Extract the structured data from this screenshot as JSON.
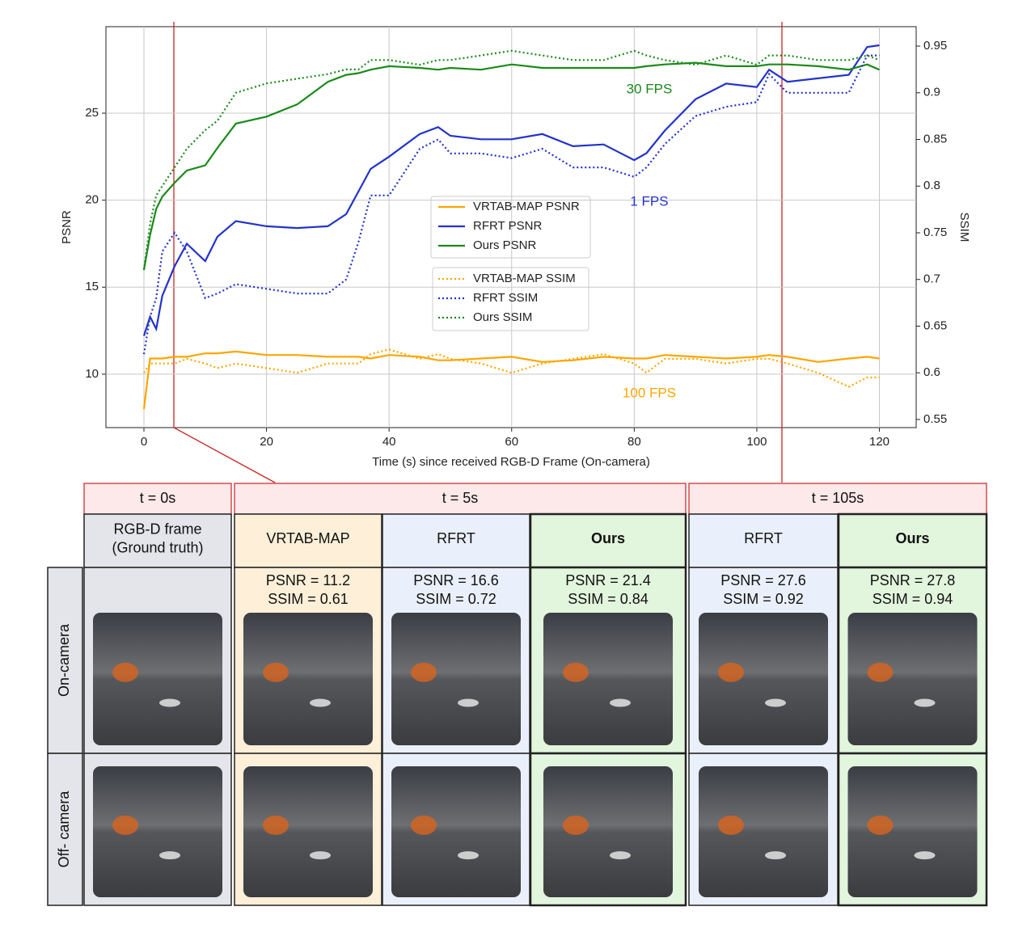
{
  "chart_data": {
    "type": "line",
    "x": [
      0,
      1,
      2,
      3,
      5,
      7,
      10,
      12,
      15,
      20,
      25,
      30,
      33,
      35,
      37,
      40,
      45,
      48,
      50,
      55,
      60,
      65,
      70,
      75,
      80,
      82,
      85,
      90,
      95,
      100,
      102,
      105,
      110,
      115,
      118,
      120
    ],
    "series": [
      {
        "name": "VRTAB-MAP PSNR",
        "color": "#ffa500",
        "linestyle": "solid",
        "axis": "y",
        "values": [
          8,
          10.9,
          10.9,
          10.9,
          11,
          11,
          11.2,
          11.2,
          11.3,
          11.1,
          11.1,
          11,
          11,
          11,
          10.9,
          11.1,
          11,
          10.8,
          10.8,
          10.9,
          11,
          10.7,
          10.8,
          11,
          10.9,
          10.9,
          11.1,
          11,
          10.9,
          11,
          11.1,
          11,
          10.7,
          10.9,
          11,
          10.9
        ]
      },
      {
        "name": "RFRT PSNR",
        "color": "#2233cc",
        "linestyle": "solid",
        "axis": "y",
        "values": [
          12.2,
          13.3,
          12.6,
          14.5,
          16.2,
          17.5,
          16.5,
          17.9,
          18.8,
          18.5,
          18.4,
          18.5,
          19.2,
          20.5,
          21.8,
          22.5,
          23.8,
          24.2,
          23.7,
          23.5,
          23.5,
          23.8,
          23.1,
          23.2,
          22.3,
          22.7,
          24,
          25.8,
          26.7,
          26.5,
          27.5,
          26.8,
          27,
          27.2,
          28.8,
          28.9
        ]
      },
      {
        "name": "Ours PSNR",
        "color": "#1a8a1a",
        "linestyle": "solid",
        "axis": "y",
        "values": [
          16,
          18,
          19.5,
          20.2,
          21,
          21.7,
          22,
          23,
          24.4,
          24.8,
          25.5,
          26.8,
          27.2,
          27.3,
          27.5,
          27.7,
          27.6,
          27.5,
          27.6,
          27.5,
          27.8,
          27.6,
          27.6,
          27.6,
          27.6,
          27.7,
          27.8,
          27.9,
          27.7,
          27.7,
          27.8,
          27.8,
          27.7,
          27.5,
          27.8,
          27.5
        ]
      },
      {
        "name": "VRTAB-MAP SSIM",
        "color": "#ffa500",
        "linestyle": "dotted",
        "axis": "y2",
        "values": [
          0.6,
          0.61,
          0.61,
          0.61,
          0.61,
          0.615,
          0.61,
          0.605,
          0.61,
          0.605,
          0.6,
          0.61,
          0.61,
          0.61,
          0.62,
          0.625,
          0.615,
          0.62,
          0.615,
          0.61,
          0.6,
          0.61,
          0.615,
          0.62,
          0.61,
          0.6,
          0.615,
          0.615,
          0.61,
          0.615,
          0.615,
          0.61,
          0.6,
          0.585,
          0.595,
          0.595
        ]
      },
      {
        "name": "RFRT SSIM",
        "color": "#2233cc",
        "linestyle": "dotted",
        "axis": "y2",
        "values": [
          0.62,
          0.66,
          0.68,
          0.73,
          0.75,
          0.73,
          0.68,
          0.685,
          0.695,
          0.69,
          0.685,
          0.685,
          0.7,
          0.74,
          0.79,
          0.79,
          0.84,
          0.85,
          0.835,
          0.835,
          0.83,
          0.84,
          0.82,
          0.82,
          0.81,
          0.82,
          0.845,
          0.875,
          0.885,
          0.89,
          0.92,
          0.9,
          0.9,
          0.9,
          0.94,
          0.94
        ]
      },
      {
        "name": "Ours SSIM",
        "color": "#1a8a1a",
        "linestyle": "dotted",
        "axis": "y2",
        "values": [
          0.71,
          0.76,
          0.79,
          0.8,
          0.82,
          0.84,
          0.86,
          0.87,
          0.9,
          0.91,
          0.915,
          0.92,
          0.925,
          0.925,
          0.935,
          0.935,
          0.93,
          0.935,
          0.935,
          0.94,
          0.945,
          0.94,
          0.935,
          0.935,
          0.945,
          0.94,
          0.935,
          0.93,
          0.94,
          0.93,
          0.94,
          0.94,
          0.935,
          0.935,
          0.94,
          0.935
        ]
      }
    ],
    "xlim": [
      -6.2,
      126
    ],
    "xticks": [
      0,
      20,
      40,
      60,
      80,
      100,
      120
    ],
    "ylim": [
      6.93,
      29.97
    ],
    "yticks": [
      10,
      15,
      20,
      25
    ],
    "y2lim": [
      0.5413,
      0.9708
    ],
    "y2ticks": [
      0.55,
      0.6,
      0.65,
      0.7,
      0.75,
      0.8,
      0.85,
      0.9,
      0.95
    ],
    "xlabel": "Time (s) since received RGB-D Frame (On-camera)",
    "ylabel": "PSNR",
    "y2label": "SSIM",
    "grid": true,
    "legend": "center",
    "annotations": [
      {
        "text": "30 FPS",
        "color": "#1a8a1a"
      },
      {
        "text": "1 FPS",
        "color": "#2233cc"
      },
      {
        "text": "100 FPS",
        "color": "#ffa500"
      }
    ]
  },
  "table": {
    "time_headers": [
      "t = 0s",
      "t = 5s",
      "t = 105s"
    ],
    "row_labels": [
      "On-camera",
      "Off- camera"
    ],
    "columns": [
      {
        "method": [
          "RGB-D frame",
          "(Ground truth)"
        ],
        "metrics": []
      },
      {
        "method": [
          "VRTAB-MAP"
        ],
        "metrics": [
          "PSNR = 11.2",
          "SSIM = 0.61"
        ]
      },
      {
        "method": [
          "RFRT"
        ],
        "metrics": [
          "PSNR = 16.6",
          "SSIM = 0.72"
        ]
      },
      {
        "method": [
          "Ours"
        ],
        "metrics": [
          "PSNR = 21.4",
          "SSIM = 0.84"
        ]
      },
      {
        "method": [
          "RFRT"
        ],
        "metrics": [
          "PSNR = 27.6",
          "SSIM = 0.92"
        ]
      },
      {
        "method": [
          "Ours"
        ],
        "metrics": [
          "PSNR = 27.8",
          "SSIM = 0.94"
        ]
      }
    ]
  }
}
